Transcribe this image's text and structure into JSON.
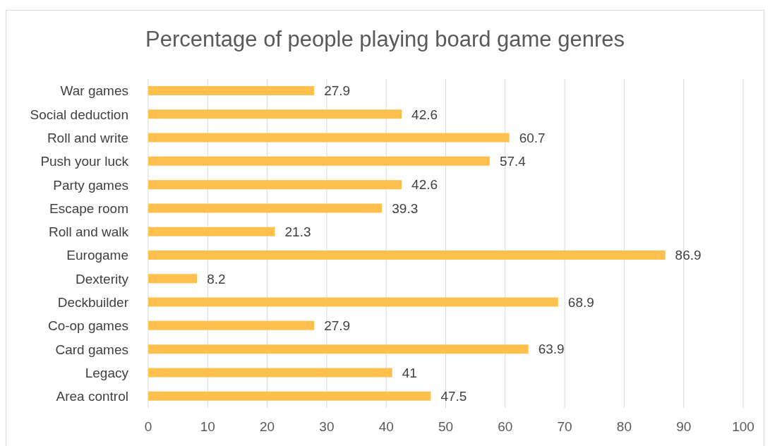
{
  "chart_data": {
    "type": "bar",
    "orientation": "horizontal",
    "title": "Percentage of people playing board game genres",
    "categories": [
      "War games",
      "Social deduction",
      "Roll and write",
      "Push your luck",
      "Party games",
      "Escape room",
      "Roll and walk",
      "Eurogame",
      "Dexterity",
      "Deckbuilder",
      "Co-op games",
      "Card games",
      "Legacy",
      "Area control"
    ],
    "values": [
      27.9,
      42.6,
      60.7,
      57.4,
      42.6,
      39.3,
      21.3,
      86.9,
      8.2,
      68.9,
      27.9,
      63.9,
      41,
      47.5
    ],
    "color": "#ffc04d",
    "xlim": [
      0,
      100
    ],
    "xticks": [
      0,
      10,
      20,
      30,
      40,
      50,
      60,
      70,
      80,
      90,
      100
    ],
    "grid": "x",
    "data_labels": true
  }
}
